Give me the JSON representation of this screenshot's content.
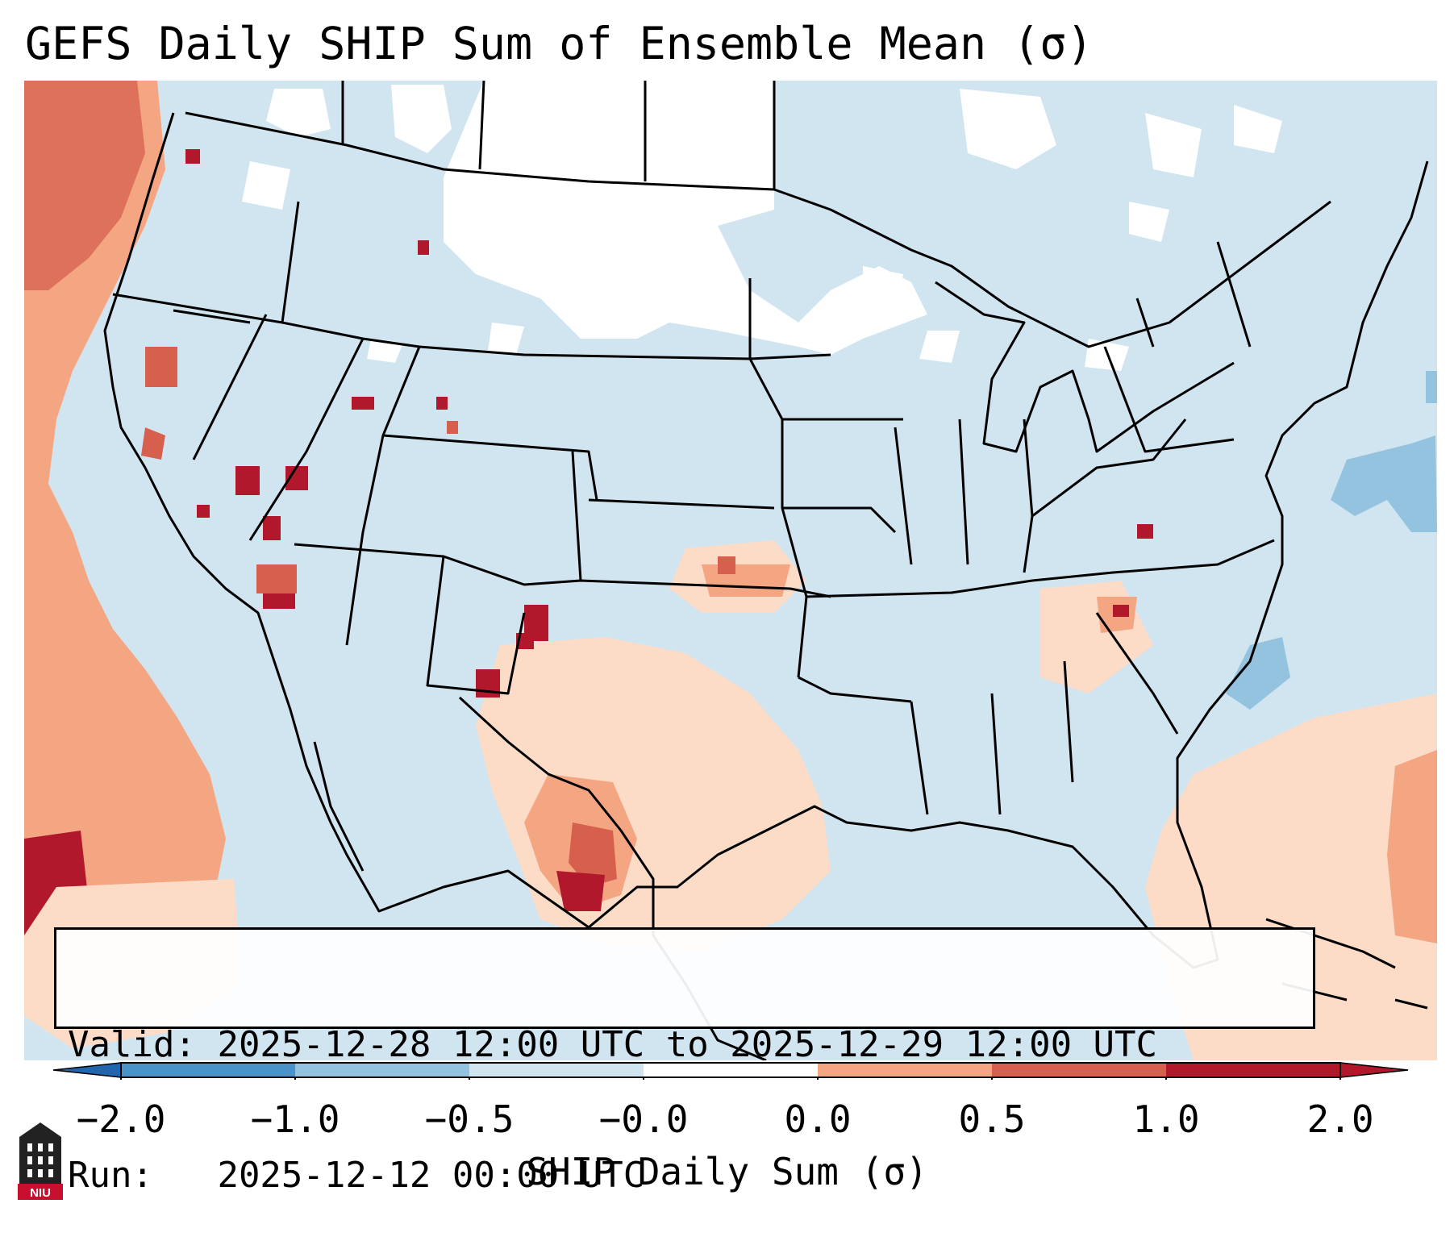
{
  "title": "GEFS Daily SHIP Sum of Ensemble Mean (σ)",
  "info": {
    "valid_label": "Valid:",
    "valid_text": "2025-12-28 12:00 UTC to 2025-12-29 12:00 UTC",
    "run_label": "Run:",
    "run_text": "2025-12-12 00:00 UTC"
  },
  "colorbar": {
    "label": "SHIP Daily Sum (σ)",
    "ticks": [
      "−2.0",
      "−1.0",
      "−0.5",
      "−0.0",
      "0.0",
      "0.5",
      "1.0",
      "2.0"
    ],
    "bin_colors": [
      "#4a93c9",
      "#93c3df",
      "#d1e5f0",
      "#ffffff",
      "#fcdbc7",
      "#f4a582",
      "#d6604d",
      "#b2182b"
    ],
    "under_color": "#2166ac",
    "over_color": "#67001f"
  },
  "logo": {
    "name": "niu-logo-icon",
    "text": "NIU"
  },
  "field_colors": {
    "ocean_west": "#f4a582",
    "land_default": "#d1e5f0",
    "no_signal": "#ffffff",
    "weak_positive": "#fcdbc7",
    "moderate_positive": "#f4a582",
    "strong_positive": "#d6604d",
    "extreme_positive": "#b2182b",
    "weak_negative": "#93c3df"
  }
}
